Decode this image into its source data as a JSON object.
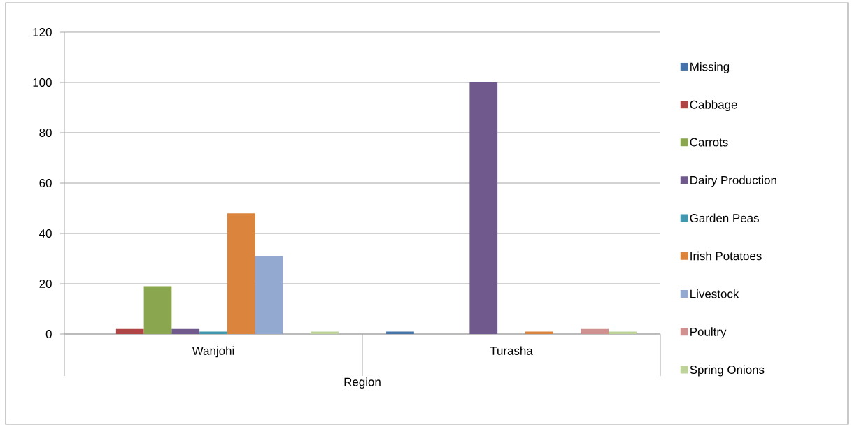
{
  "chart_data": {
    "type": "bar",
    "xlabel": "Region",
    "categories": [
      "Wanjohi",
      "Turasha"
    ],
    "series": [
      {
        "name": "Missing",
        "color": "#4572a7",
        "values": [
          0,
          1
        ]
      },
      {
        "name": "Cabbage",
        "color": "#b04545",
        "values": [
          2,
          0
        ]
      },
      {
        "name": "Carrots",
        "color": "#8aa64f",
        "values": [
          19,
          0
        ]
      },
      {
        "name": "Dairy Production",
        "color": "#705a8d",
        "values": [
          2,
          100
        ]
      },
      {
        "name": "Garden Peas",
        "color": "#4198af",
        "values": [
          1,
          0
        ]
      },
      {
        "name": "Irish Potatoes",
        "color": "#db843d",
        "values": [
          48,
          1
        ]
      },
      {
        "name": "Livestock",
        "color": "#93a9cf",
        "values": [
          31,
          0
        ]
      },
      {
        "name": "Poultry",
        "color": "#d09090",
        "values": [
          0,
          2
        ]
      },
      {
        "name": "Spring Onions",
        "color": "#bed39a",
        "values": [
          1,
          1
        ]
      }
    ],
    "ylim": [
      0,
      120
    ],
    "yticks": [
      0,
      20,
      40,
      60,
      80,
      100,
      120
    ],
    "grid": "y",
    "legend": "right"
  }
}
